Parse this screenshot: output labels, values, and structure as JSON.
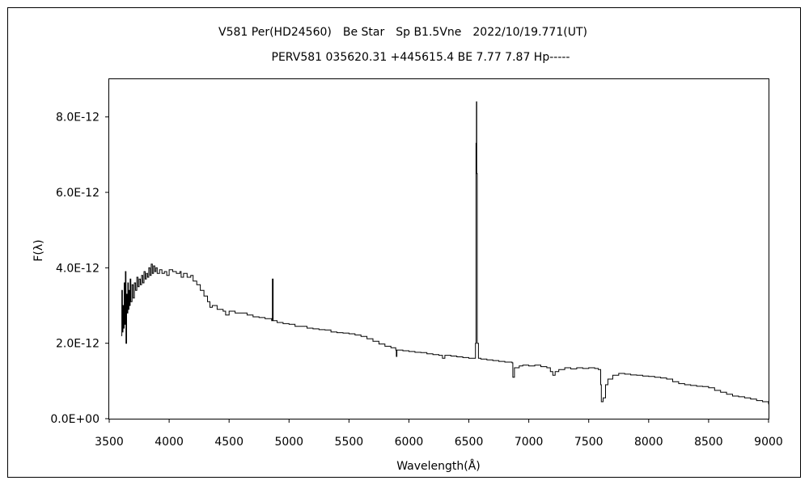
{
  "chart_data": {
    "type": "line",
    "title": "V581 Per(HD24560)　Be Star　Sp B1.5Vne　2022/10/19.771(UT)",
    "subtitle": "PERV581 035620.31 +445615.4 BE 7.77 7.87 Hp-----",
    "xlabel": "Wavelength(Å)",
    "ylabel": "F(λ)",
    "xlim": [
      3500,
      9000
    ],
    "ylim": [
      0,
      9e-12
    ],
    "x_ticks": [
      3500,
      4000,
      4500,
      5000,
      5500,
      6000,
      6500,
      7000,
      7500,
      8000,
      8500,
      9000
    ],
    "x_tick_labels": [
      "3500",
      "4000",
      "4500",
      "5000",
      "5500",
      "6000",
      "6500",
      "7000",
      "7500",
      "8000",
      "8500",
      "9000"
    ],
    "y_ticks": [
      0,
      2e-12,
      4e-12,
      6e-12,
      8e-12
    ],
    "y_tick_labels": [
      "0.0E+00",
      "2.0E-12",
      "4.0E-12",
      "6.0E-12",
      "8.0E-12"
    ],
    "grid": false,
    "legend": "none",
    "series": [
      {
        "color": "#000000",
        "points": [
          [
            3600,
            2.2e-12
          ],
          [
            3605,
            3.4e-12
          ],
          [
            3610,
            2.3e-12
          ],
          [
            3615,
            3e-12
          ],
          [
            3620,
            2.4e-12
          ],
          [
            3625,
            3.6e-12
          ],
          [
            3630,
            2.5e-12
          ],
          [
            3635,
            3.9e-12
          ],
          [
            3640,
            2e-12
          ],
          [
            3645,
            3.3e-12
          ],
          [
            3650,
            2.8e-12
          ],
          [
            3655,
            3.6e-12
          ],
          [
            3660,
            2.9e-12
          ],
          [
            3665,
            3.4e-12
          ],
          [
            3670,
            3e-12
          ],
          [
            3675,
            3.7e-12
          ],
          [
            3680,
            3.1e-12
          ],
          [
            3690,
            3.55e-12
          ],
          [
            3700,
            3.2e-12
          ],
          [
            3710,
            3.6e-12
          ],
          [
            3720,
            3.4e-12
          ],
          [
            3730,
            3.75e-12
          ],
          [
            3740,
            3.5e-12
          ],
          [
            3750,
            3.7e-12
          ],
          [
            3760,
            3.55e-12
          ],
          [
            3770,
            3.8e-12
          ],
          [
            3780,
            3.6e-12
          ],
          [
            3790,
            3.9e-12
          ],
          [
            3800,
            3.7e-12
          ],
          [
            3810,
            3.85e-12
          ],
          [
            3820,
            3.75e-12
          ],
          [
            3830,
            4e-12
          ],
          [
            3840,
            3.8e-12
          ],
          [
            3850,
            4.1e-12
          ],
          [
            3860,
            3.85e-12
          ],
          [
            3870,
            4.05e-12
          ],
          [
            3880,
            3.9e-12
          ],
          [
            3890,
            4e-12
          ],
          [
            3900,
            3.85e-12
          ],
          [
            3920,
            3.95e-12
          ],
          [
            3940,
            3.85e-12
          ],
          [
            3960,
            3.9e-12
          ],
          [
            3980,
            3.8e-12
          ],
          [
            4000,
            3.95e-12
          ],
          [
            4030,
            3.9e-12
          ],
          [
            4060,
            3.85e-12
          ],
          [
            4090,
            3.9e-12
          ],
          [
            4100,
            3.75e-12
          ],
          [
            4120,
            3.85e-12
          ],
          [
            4150,
            3.75e-12
          ],
          [
            4180,
            3.8e-12
          ],
          [
            4200,
            3.65e-12
          ],
          [
            4230,
            3.55e-12
          ],
          [
            4260,
            3.4e-12
          ],
          [
            4290,
            3.25e-12
          ],
          [
            4320,
            3.1e-12
          ],
          [
            4340,
            2.95e-12
          ],
          [
            4360,
            3e-12
          ],
          [
            4400,
            2.9e-12
          ],
          [
            4450,
            2.85e-12
          ],
          [
            4471,
            2.75e-12
          ],
          [
            4500,
            2.85e-12
          ],
          [
            4550,
            2.8e-12
          ],
          [
            4600,
            2.8e-12
          ],
          [
            4650,
            2.75e-12
          ],
          [
            4700,
            2.7e-12
          ],
          [
            4750,
            2.68e-12
          ],
          [
            4800,
            2.65e-12
          ],
          [
            4855,
            2.6e-12
          ],
          [
            4861,
            3.7e-12
          ],
          [
            4867,
            2.6e-12
          ],
          [
            4900,
            2.55e-12
          ],
          [
            4950,
            2.52e-12
          ],
          [
            5000,
            2.5e-12
          ],
          [
            5050,
            2.45e-12
          ],
          [
            5100,
            2.45e-12
          ],
          [
            5150,
            2.4e-12
          ],
          [
            5200,
            2.38e-12
          ],
          [
            5250,
            2.36e-12
          ],
          [
            5300,
            2.35e-12
          ],
          [
            5350,
            2.3e-12
          ],
          [
            5400,
            2.28e-12
          ],
          [
            5450,
            2.27e-12
          ],
          [
            5500,
            2.25e-12
          ],
          [
            5550,
            2.22e-12
          ],
          [
            5600,
            2.18e-12
          ],
          [
            5650,
            2.12e-12
          ],
          [
            5700,
            2.05e-12
          ],
          [
            5750,
            1.98e-12
          ],
          [
            5800,
            1.92e-12
          ],
          [
            5850,
            1.88e-12
          ],
          [
            5890,
            1.82e-12
          ],
          [
            5895,
            1.65e-12
          ],
          [
            5900,
            1.82e-12
          ],
          [
            5950,
            1.8e-12
          ],
          [
            6000,
            1.78e-12
          ],
          [
            6050,
            1.76e-12
          ],
          [
            6100,
            1.75e-12
          ],
          [
            6150,
            1.72e-12
          ],
          [
            6200,
            1.7e-12
          ],
          [
            6250,
            1.68e-12
          ],
          [
            6280,
            1.6e-12
          ],
          [
            6300,
            1.68e-12
          ],
          [
            6350,
            1.66e-12
          ],
          [
            6400,
            1.64e-12
          ],
          [
            6450,
            1.62e-12
          ],
          [
            6500,
            1.6e-12
          ],
          [
            6540,
            1.6e-12
          ],
          [
            6555,
            2e-12
          ],
          [
            6560,
            7.3e-12
          ],
          [
            6563,
            8.4e-12
          ],
          [
            6566,
            6.5e-12
          ],
          [
            6570,
            2e-12
          ],
          [
            6580,
            1.6e-12
          ],
          [
            6600,
            1.58e-12
          ],
          [
            6650,
            1.56e-12
          ],
          [
            6700,
            1.54e-12
          ],
          [
            6750,
            1.52e-12
          ],
          [
            6800,
            1.5e-12
          ],
          [
            6860,
            1.48e-12
          ],
          [
            6867,
            1.1e-12
          ],
          [
            6880,
            1.35e-12
          ],
          [
            6920,
            1.4e-12
          ],
          [
            6950,
            1.42e-12
          ],
          [
            7000,
            1.4e-12
          ],
          [
            7050,
            1.42e-12
          ],
          [
            7100,
            1.38e-12
          ],
          [
            7150,
            1.35e-12
          ],
          [
            7180,
            1.25e-12
          ],
          [
            7200,
            1.15e-12
          ],
          [
            7220,
            1.25e-12
          ],
          [
            7250,
            1.3e-12
          ],
          [
            7300,
            1.35e-12
          ],
          [
            7350,
            1.32e-12
          ],
          [
            7400,
            1.35e-12
          ],
          [
            7450,
            1.33e-12
          ],
          [
            7500,
            1.35e-12
          ],
          [
            7550,
            1.33e-12
          ],
          [
            7580,
            1.3e-12
          ],
          [
            7600,
            9e-13
          ],
          [
            7605,
            4.5e-13
          ],
          [
            7620,
            5.5e-13
          ],
          [
            7640,
            9e-13
          ],
          [
            7660,
            1.05e-12
          ],
          [
            7700,
            1.15e-12
          ],
          [
            7750,
            1.2e-12
          ],
          [
            7800,
            1.18e-12
          ],
          [
            7850,
            1.16e-12
          ],
          [
            7900,
            1.15e-12
          ],
          [
            7950,
            1.13e-12
          ],
          [
            8000,
            1.12e-12
          ],
          [
            8050,
            1.1e-12
          ],
          [
            8100,
            1.08e-12
          ],
          [
            8150,
            1.05e-12
          ],
          [
            8200,
            9.8e-13
          ],
          [
            8250,
            9.3e-13
          ],
          [
            8300,
            9e-13
          ],
          [
            8350,
            8.8e-13
          ],
          [
            8400,
            8.6e-13
          ],
          [
            8450,
            8.5e-13
          ],
          [
            8500,
            8.2e-13
          ],
          [
            8550,
            7.5e-13
          ],
          [
            8600,
            7e-13
          ],
          [
            8650,
            6.5e-13
          ],
          [
            8700,
            6e-13
          ],
          [
            8750,
            5.8e-13
          ],
          [
            8800,
            5.5e-13
          ],
          [
            8850,
            5.2e-13
          ],
          [
            8900,
            4.8e-13
          ],
          [
            8950,
            4.5e-13
          ],
          [
            9000,
            3.8e-13
          ]
        ]
      }
    ]
  }
}
